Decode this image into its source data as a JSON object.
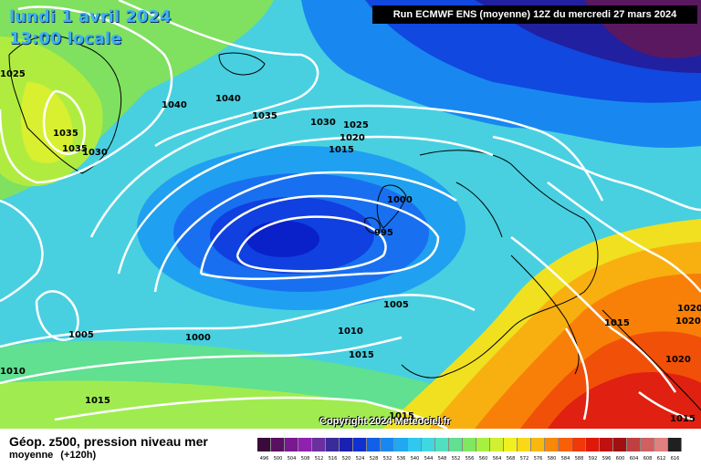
{
  "header": {
    "date": "lundi 1 avril 2024",
    "time": "13:00 locale",
    "run": "Run ECMWF ENS (moyenne) 12Z du mercredi 27 mars 2024"
  },
  "copyright": "Copyright 2024 Meteociel.fr",
  "legend": {
    "title": "Géop. z500, pression niveau mer",
    "subtitle": "moyenne",
    "lead": "(+120h)",
    "scale_values": [
      "496",
      "500",
      "504",
      "508",
      "512",
      "516",
      "520",
      "524",
      "528",
      "532",
      "536",
      "540",
      "544",
      "548",
      "552",
      "556",
      "560",
      "564",
      "568",
      "572",
      "576",
      "580",
      "584",
      "588",
      "592",
      "596",
      "600",
      "604",
      "608",
      "612",
      "616"
    ],
    "scale_colors": [
      "#3a0a3a",
      "#5a1060",
      "#7a1890",
      "#9020b0",
      "#6b2fa0",
      "#3a2a9a",
      "#1a20b0",
      "#1030d0",
      "#1060e8",
      "#1888f0",
      "#20a8f0",
      "#30c8f0",
      "#40d8e0",
      "#50e0c0",
      "#60e090",
      "#80e860",
      "#a8f040",
      "#d0f030",
      "#f0f020",
      "#f8d818",
      "#f8b810",
      "#f88808",
      "#f86008",
      "#f03808",
      "#e01808",
      "#c01010",
      "#a01010",
      "#c04040",
      "#d06060",
      "#e08080",
      "#202020"
    ]
  },
  "isobars": [
    {
      "label": "1025"
    },
    {
      "label": "1040"
    },
    {
      "label": "1040"
    },
    {
      "label": "1035"
    },
    {
      "label": "1035"
    },
    {
      "label": "1030"
    },
    {
      "label": "1035"
    },
    {
      "label": "1030"
    },
    {
      "label": "1025"
    },
    {
      "label": "1020"
    },
    {
      "label": "1015"
    },
    {
      "label": "1000"
    },
    {
      "label": "995"
    },
    {
      "label": "1005"
    },
    {
      "label": "1005"
    },
    {
      "label": "1000"
    },
    {
      "label": "1010"
    },
    {
      "label": "1015"
    },
    {
      "label": "1010"
    },
    {
      "label": "1015"
    },
    {
      "label": "1015"
    },
    {
      "label": "1020"
    },
    {
      "label": "1020"
    },
    {
      "label": "1020"
    },
    {
      "label": "1015"
    },
    {
      "label": "1015"
    }
  ]
}
